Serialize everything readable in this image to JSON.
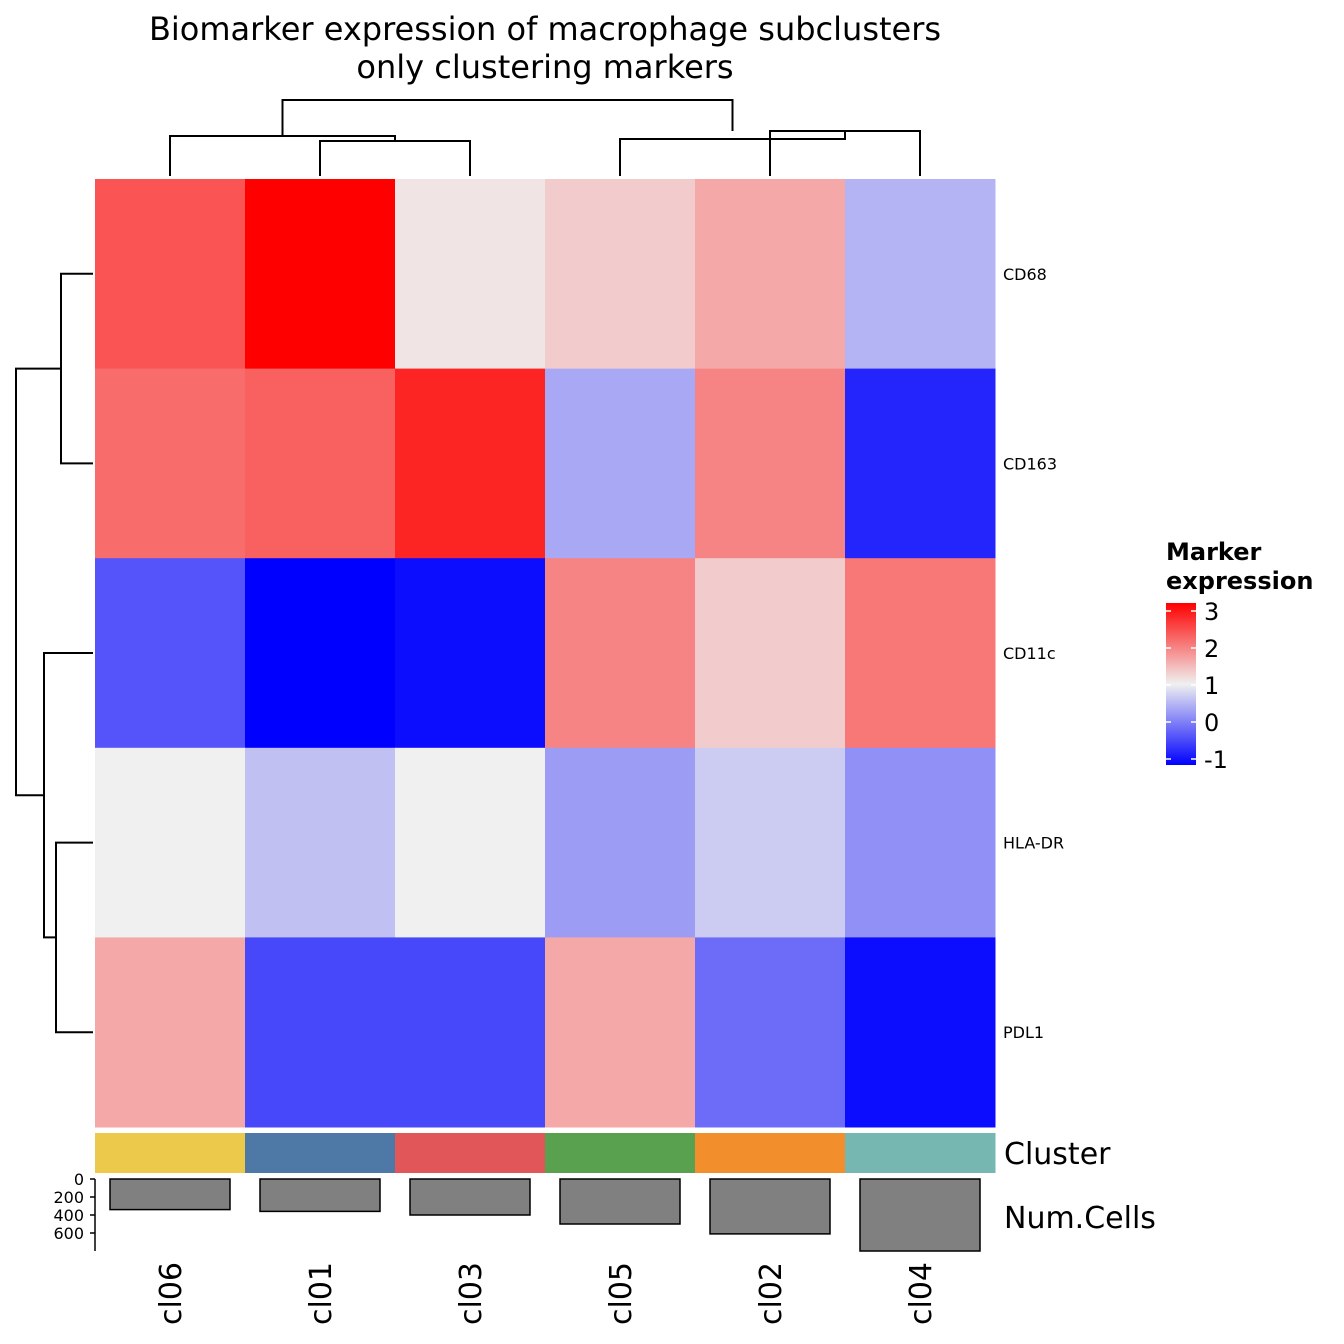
{
  "chart_data": {
    "type": "heatmap",
    "title": "Biomarker expression of macrophage subclusters",
    "subtitle": "only clustering markers",
    "columns": [
      "cl06",
      "cl01",
      "cl03",
      "cl05",
      "cl02",
      "cl04"
    ],
    "rows": [
      "CD68",
      "CD163",
      "CD11c",
      "HLA-DR",
      "PDL1"
    ],
    "values": [
      [
        2.3,
        3.0,
        1.1,
        1.3,
        1.6,
        0.5
      ],
      [
        2.1,
        2.2,
        2.7,
        0.4,
        1.9,
        -0.7
      ],
      [
        -0.3,
        -1.0,
        -0.9,
        1.9,
        1.3,
        2.0
      ],
      [
        1.0,
        0.6,
        1.0,
        0.3,
        0.7,
        0.2
      ],
      [
        1.6,
        -0.4,
        -0.4,
        1.6,
        -0.1,
        -0.9
      ]
    ],
    "colorbar": {
      "title": "Marker expression",
      "ticks": [
        "3",
        "2",
        "1",
        "0",
        "-1"
      ],
      "range": [
        -1,
        3
      ],
      "colors": {
        "low": "#0000ff",
        "mid": "#f0f0f0",
        "high": "#ff0000"
      }
    },
    "annotations": {
      "cluster": {
        "label": "Cluster",
        "colors": [
          "#ecc94b",
          "#4e79a7",
          "#e15759",
          "#59a14f",
          "#f28e2b",
          "#76b7b2"
        ]
      },
      "num_cells": {
        "label": "Num.Cells",
        "values": [
          340,
          360,
          400,
          500,
          610,
          800
        ],
        "axis_ticks": [
          "0",
          "200",
          "400",
          "600"
        ],
        "axis_max": 800,
        "bar_color": "#808080"
      }
    }
  }
}
